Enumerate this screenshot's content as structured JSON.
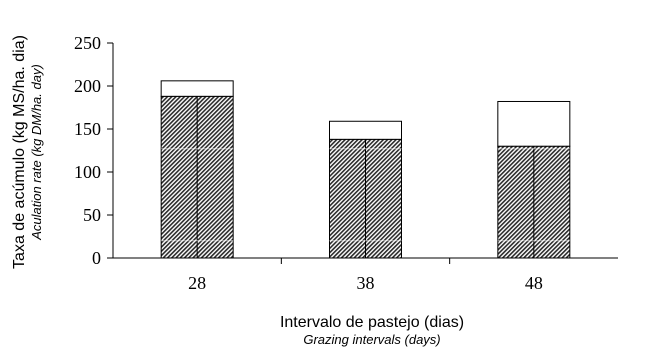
{
  "chart_data": {
    "type": "bar",
    "stacked": true,
    "categories": [
      "28",
      "38",
      "48"
    ],
    "series": [
      {
        "values": [
          188,
          138,
          130
        ],
        "color": "#555555",
        "fill": "diagonal-hatch"
      },
      {
        "values": [
          18,
          21,
          52
        ],
        "color": "#ffffff",
        "fill": "solid"
      }
    ],
    "ylim": [
      0,
      250
    ],
    "yticks": [
      "0",
      "50",
      "100",
      "150",
      "200",
      "250"
    ],
    "ylabel": "Taxa de acúmulo (kg MS/ha. dia)",
    "ylabel_en": "Aculation rate (kg DM/ha. day)",
    "xlabel": "Intervalo de pastejo (dias)",
    "xlabel_en": "Grazing intervals (days)",
    "grid": false,
    "legend": "none"
  }
}
